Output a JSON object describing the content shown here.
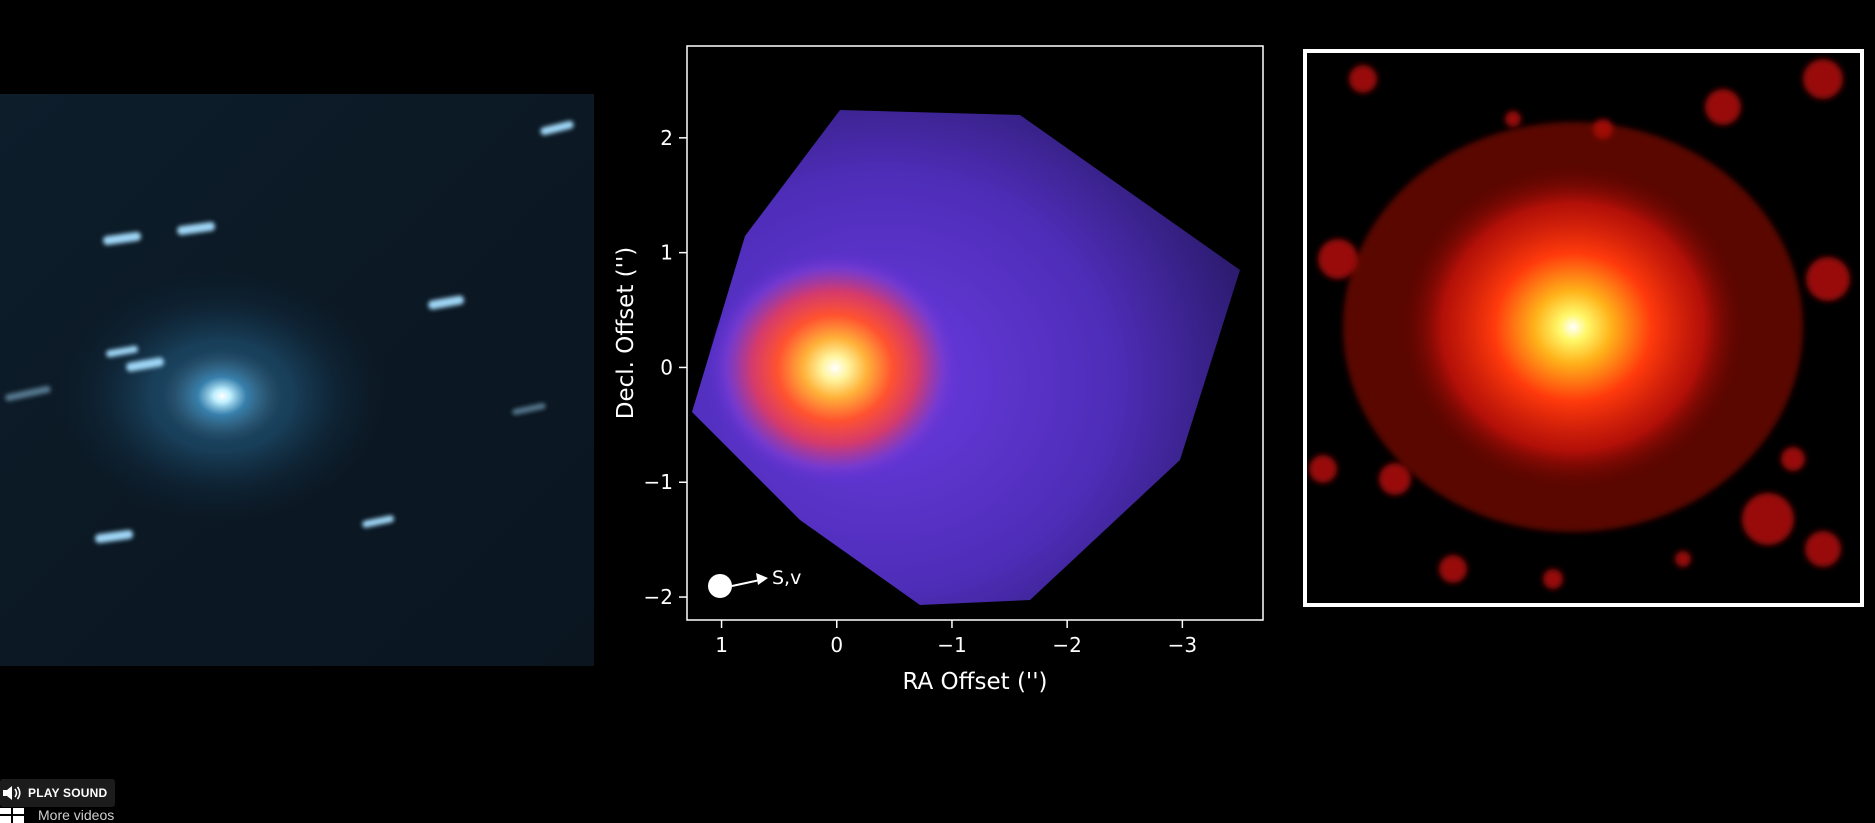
{
  "figure": {
    "left_panel": {
      "icon": "comet-photo"
    },
    "middle_panel": {
      "xlabel": "RA Offset ('')",
      "ylabel": "Decl. Offset ('')",
      "x_ticks": [
        "1",
        "0",
        "−1",
        "−2",
        "−3"
      ],
      "y_ticks": [
        "2",
        "1",
        "0",
        "−1",
        "−2"
      ],
      "xlim": [
        1.3,
        -3.7
      ],
      "ylim": [
        -2.2,
        2.8
      ],
      "annotation": "S,v"
    },
    "right_panel": {
      "icon": "comet-red-emission-map"
    }
  },
  "player": {
    "sound_label": "PLAY SOUND",
    "more_label": "More videos",
    "sound_icon": "speaker-icon",
    "grid_icon": "grid-icon"
  }
}
